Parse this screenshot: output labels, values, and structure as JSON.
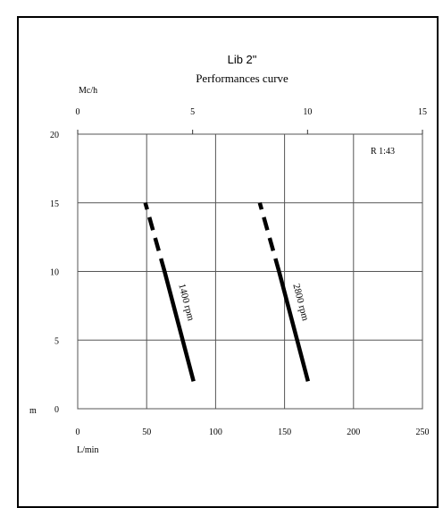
{
  "chart_data": {
    "type": "line",
    "title": "Lib 2\"",
    "subtitle": "Performances curve",
    "xlabel": "L/min",
    "ylabel": "m",
    "x2label": "Mc/h",
    "annotation": "R 1:43",
    "xlim": [
      0,
      250
    ],
    "ylim": [
      0,
      20
    ],
    "x2lim": [
      0,
      15
    ],
    "x_ticks": [
      "0",
      "50",
      "100",
      "150",
      "200",
      "250"
    ],
    "y_ticks": [
      "0",
      "5",
      "10",
      "15",
      "20"
    ],
    "x2_ticks": [
      "0",
      "5",
      "10",
      "15"
    ],
    "grid": true,
    "series": [
      {
        "name": "1400 rpm",
        "solid": [
          {
            "x": 84,
            "y": 2
          },
          {
            "x": 63,
            "y": 10
          }
        ],
        "dashed": [
          {
            "x": 63,
            "y": 10
          },
          {
            "x": 49,
            "y": 15
          }
        ]
      },
      {
        "name": "2800 rpm",
        "solid": [
          {
            "x": 167,
            "y": 2
          },
          {
            "x": 146,
            "y": 10
          }
        ],
        "dashed": [
          {
            "x": 146,
            "y": 10
          },
          {
            "x": 132,
            "y": 15
          }
        ]
      }
    ],
    "colors": {
      "line": "#000000",
      "grid": "#555555"
    }
  }
}
